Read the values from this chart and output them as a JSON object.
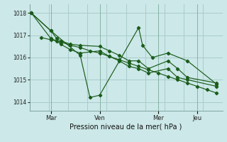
{
  "bg_color": "#cce8e8",
  "grid_color": "#aacccc",
  "line_color": "#1a5c1a",
  "marker_color": "#1a5c1a",
  "title": "Pression niveau de la mer( hPa )",
  "ylim": [
    1013.6,
    1018.4
  ],
  "yticks": [
    1014,
    1015,
    1016,
    1017,
    1018
  ],
  "xtick_labels": [
    "Mar",
    "Ven",
    "Mer",
    "Jeu"
  ],
  "xtick_positions": [
    1.0,
    3.5,
    6.5,
    8.5
  ],
  "xlim": [
    -0.1,
    9.8
  ],
  "series1_x": [
    0,
    1.0,
    2.5,
    3.0,
    3.5,
    5.5,
    5.7,
    6.2,
    7.0,
    8.0,
    9.5
  ],
  "series1_y": [
    1018.0,
    1017.2,
    1016.1,
    1014.2,
    1014.3,
    1017.35,
    1016.55,
    1016.0,
    1016.2,
    1015.85,
    1014.8
  ],
  "series2_x": [
    0,
    1.0,
    1.3,
    1.5,
    2.0,
    2.5,
    3.5,
    4.0,
    4.5,
    5.0,
    5.5,
    6.0,
    7.0,
    7.5,
    8.0,
    9.5
  ],
  "series2_y": [
    1018.0,
    1017.2,
    1016.85,
    1016.75,
    1016.6,
    1016.55,
    1016.5,
    1016.3,
    1016.1,
    1015.85,
    1015.85,
    1015.5,
    1015.85,
    1015.5,
    1015.1,
    1014.85
  ],
  "series3_x": [
    0,
    1.0,
    1.3,
    1.5,
    2.0,
    2.5,
    3.5,
    4.0,
    4.5,
    5.0,
    5.5,
    6.0,
    7.0,
    7.5,
    8.0,
    9.5
  ],
  "series3_y": [
    1018.0,
    1016.85,
    1016.75,
    1016.6,
    1016.35,
    1016.2,
    1016.3,
    1016.05,
    1015.85,
    1015.6,
    1015.5,
    1015.3,
    1015.5,
    1015.1,
    1015.0,
    1014.7
  ],
  "series4_x": [
    0.5,
    1.0,
    1.5,
    2.0,
    2.5,
    3.0,
    3.5,
    4.0,
    4.5,
    5.0,
    5.5,
    6.0,
    6.5,
    7.0,
    7.5,
    8.0,
    8.5,
    9.0,
    9.5
  ],
  "series4_y": [
    1016.9,
    1016.8,
    1016.7,
    1016.55,
    1016.45,
    1016.3,
    1016.2,
    1016.05,
    1015.9,
    1015.75,
    1015.6,
    1015.45,
    1015.3,
    1015.15,
    1015.0,
    1014.85,
    1014.7,
    1014.55,
    1014.4
  ]
}
